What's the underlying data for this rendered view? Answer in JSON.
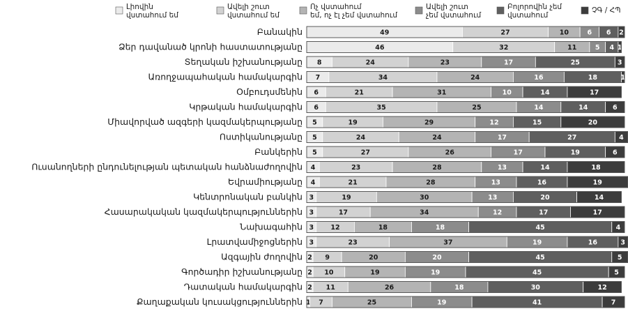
{
  "chart_data": {
    "type": "bar",
    "orientation": "horizontal",
    "stacked": true,
    "title": "",
    "xlabel": "",
    "ylabel": "",
    "xlim": [
      0,
      100
    ],
    "grid": false,
    "legend_position": "top",
    "series": [
      {
        "name": "Լիովին վստահում եմ",
        "color": "#ebebeb",
        "text_color": "#1a1a1a"
      },
      {
        "name": "Ավելի շուտ վստահում եմ",
        "color": "#d2d2d2",
        "text_color": "#1a1a1a"
      },
      {
        "name": "Ոչ վստահում եմ, ոչ էլ չեմ վստահում",
        "color": "#b4b4b4",
        "text_color": "#1a1a1a"
      },
      {
        "name": "Ավելի շուտ չեմ վստահում",
        "color": "#8c8c8c",
        "text_color": "#ffffff"
      },
      {
        "name": "Բոլորովին չեմ վստահում",
        "color": "#5f5f5f",
        "text_color": "#ffffff"
      },
      {
        "name": "ՉԳ / ՀՊ",
        "color": "#3c3c3c",
        "text_color": "#ffffff"
      }
    ],
    "categories": [
      "Բանակին",
      "Ձեր դավանած կրոնի հաստատությանը",
      "Տեղական իշխանությանը",
      "Առողջապահական համակարգին",
      "Օմբուդսմենին",
      "Կրթական համակարգին",
      "Միավորված ազգերի կազմակերպությանը",
      "Ոստիկանությանը",
      "Բանկերին",
      "Ուսանողների ընդունելության պետական հանձնաժողովին",
      "Եվրամիությանը",
      "Կենտրոնական բանկին",
      "Հասարակական կազմակերպություններին",
      "Նախագահին",
      "Լրատվամիջոցներին",
      "Ազգային ժողովին",
      "Գործադիր իշխանությանը",
      "Դատական համակարգին",
      "Քաղաքական կուսակցություններին"
    ],
    "rows": [
      [
        49,
        27,
        10,
        6,
        6,
        2
      ],
      [
        46,
        32,
        11,
        5,
        4,
        1
      ],
      [
        8,
        24,
        23,
        17,
        25,
        3
      ],
      [
        7,
        34,
        24,
        16,
        18,
        1
      ],
      [
        6,
        21,
        31,
        10,
        14,
        17
      ],
      [
        6,
        35,
        25,
        14,
        14,
        6
      ],
      [
        5,
        19,
        29,
        12,
        15,
        20
      ],
      [
        5,
        24,
        24,
        17,
        27,
        4
      ],
      [
        5,
        27,
        26,
        17,
        19,
        6
      ],
      [
        4,
        23,
        28,
        13,
        14,
        18
      ],
      [
        4,
        21,
        28,
        13,
        16,
        19
      ],
      [
        3,
        19,
        30,
        13,
        20,
        14
      ],
      [
        3,
        17,
        34,
        12,
        17,
        17
      ],
      [
        3,
        12,
        18,
        18,
        45,
        4
      ],
      [
        3,
        23,
        37,
        19,
        16,
        3
      ],
      [
        2,
        9,
        20,
        20,
        45,
        5
      ],
      [
        2,
        10,
        19,
        19,
        45,
        5
      ],
      [
        2,
        11,
        26,
        18,
        30,
        12
      ],
      [
        1,
        7,
        25,
        19,
        41,
        7
      ]
    ]
  }
}
